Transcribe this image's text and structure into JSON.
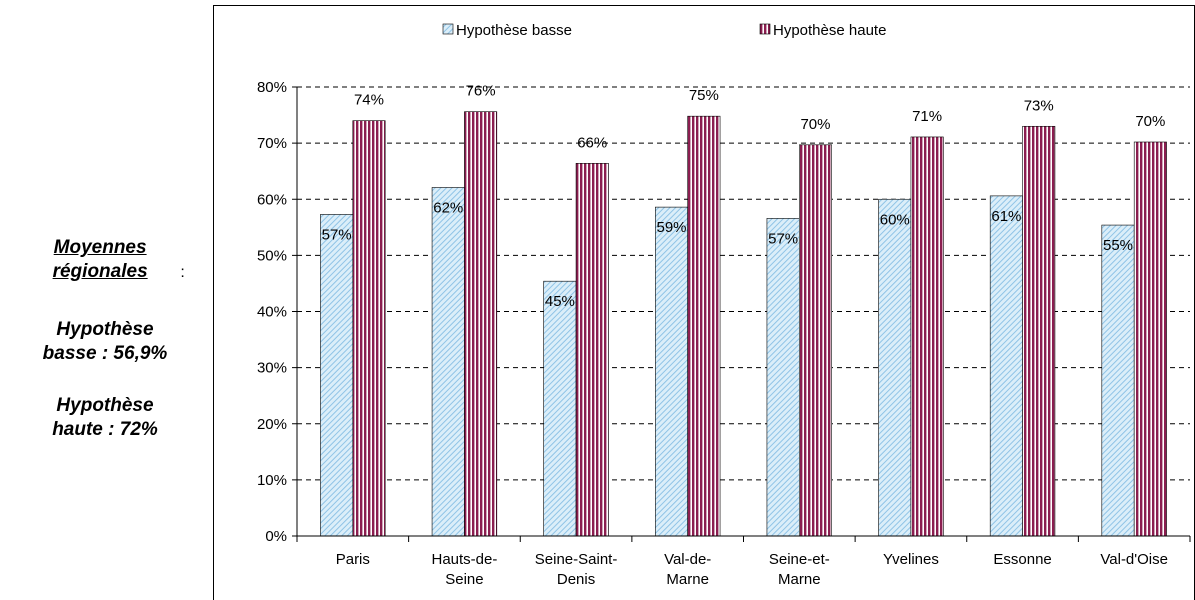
{
  "chart_data": {
    "type": "bar",
    "categories": [
      "Paris",
      "Hauts-de-\nSeine",
      "Seine-Saint-\nDenis",
      "Val-de-\nMarne",
      "Seine-et-\nMarne",
      "Yvelines",
      "Essonne",
      "Val-d'Oise"
    ],
    "series": [
      {
        "name": "Hypothèse basse",
        "color": "#a9d3ee",
        "values": [
          57.3,
          62.1,
          45.4,
          58.6,
          56.6,
          60.0,
          60.6,
          55.4
        ],
        "value_labels": [
          "57%",
          "62%",
          "45%",
          "59%",
          "57%",
          "60%",
          "61%",
          "55%"
        ]
      },
      {
        "name": "Hypothèse haute",
        "color": "#8b1e50",
        "values": [
          74.0,
          75.6,
          66.4,
          74.8,
          69.7,
          71.1,
          73.0,
          70.2
        ],
        "value_labels": [
          "74%",
          "76%",
          "66%",
          "75%",
          "70%",
          "71%",
          "73%",
          "70%"
        ]
      }
    ],
    "ylim": [
      0,
      80
    ],
    "yticks": [
      {
        "value": 0,
        "label": "0%"
      },
      {
        "value": 10,
        "label": "10%"
      },
      {
        "value": 20,
        "label": "20%"
      },
      {
        "value": 30,
        "label": "30%"
      },
      {
        "value": 40,
        "label": "40%"
      },
      {
        "value": 50,
        "label": "50%"
      },
      {
        "value": 60,
        "label": "60%"
      },
      {
        "value": 70,
        "label": "70%"
      },
      {
        "value": 80,
        "label": "80%"
      }
    ],
    "grid": true,
    "legend": "top",
    "annotations": {
      "heading": "Moyennes régionales",
      "heading_suffix": ":",
      "low": "Hypothèse basse : 56,9%",
      "high": "Hypothèse haute : 72%"
    }
  }
}
